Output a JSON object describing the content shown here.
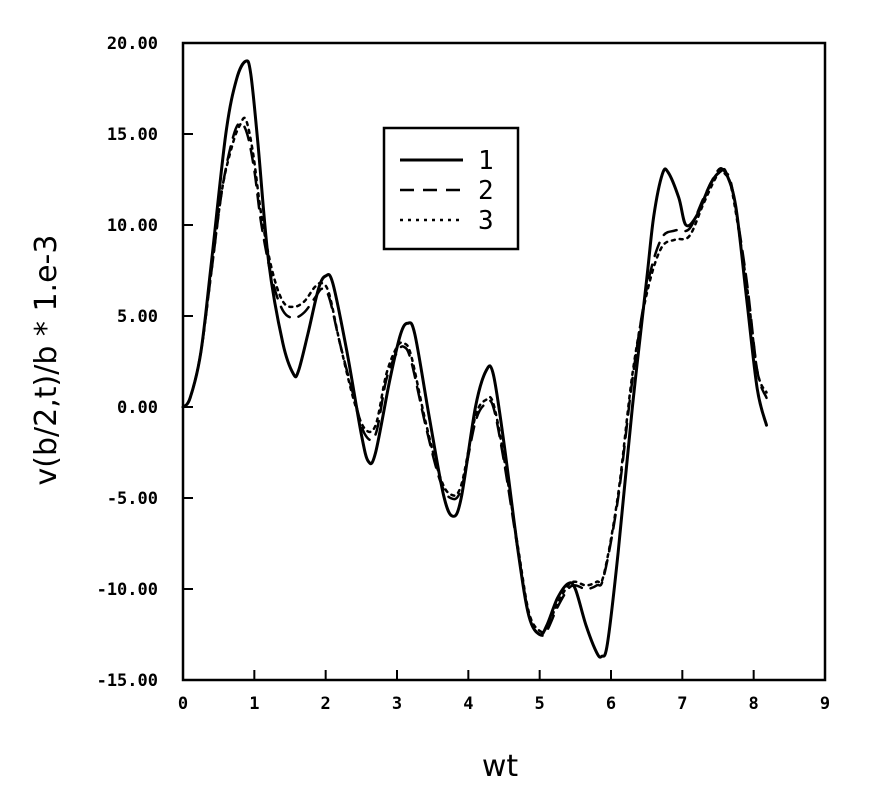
{
  "chart_data": {
    "type": "line",
    "title": "",
    "xlabel": "wt",
    "ylabel": "v(b/2,t)/b * 1.e-3",
    "xlim": [
      0,
      9
    ],
    "ylim": [
      -15,
      20
    ],
    "x_ticks": [
      0,
      1,
      2,
      3,
      4,
      5,
      6,
      7,
      8,
      9
    ],
    "x_tick_labels": [
      "0",
      "1",
      "2",
      "3",
      "4",
      "5",
      "6",
      "7",
      "8",
      "9"
    ],
    "y_ticks": [
      20,
      15,
      10,
      5,
      0,
      -5,
      -10,
      -15
    ],
    "y_tick_labels": [
      "20.00",
      "15.00",
      "10.00",
      "5.00",
      "0.00",
      "-5.00",
      "-10.00",
      "-15.00"
    ],
    "grid": false,
    "legend_position": "upper-center",
    "series": [
      {
        "name": "1",
        "style": "solid",
        "x": [
          0.0,
          0.1,
          0.25,
          0.4,
          0.6,
          0.75,
          0.88,
          0.95,
          1.05,
          1.2,
          1.4,
          1.55,
          1.62,
          1.75,
          1.9,
          2.0,
          2.1,
          2.3,
          2.5,
          2.6,
          2.7,
          2.9,
          3.05,
          3.15,
          3.25,
          3.45,
          3.65,
          3.78,
          3.9,
          4.1,
          4.25,
          4.35,
          4.5,
          4.7,
          4.85,
          5.0,
          5.1,
          5.25,
          5.4,
          5.5,
          5.65,
          5.8,
          5.87,
          5.95,
          6.1,
          6.3,
          6.5,
          6.6,
          6.72,
          6.8,
          6.95,
          7.05,
          7.2,
          7.4,
          7.55,
          7.62,
          7.75,
          7.9,
          8.05,
          8.18
        ],
        "y": [
          0.0,
          0.5,
          3.0,
          8.0,
          15.0,
          18.0,
          19.0,
          18.3,
          14.5,
          8.0,
          3.5,
          1.8,
          2.0,
          4.0,
          6.5,
          7.2,
          6.8,
          3.0,
          -1.5,
          -3.0,
          -2.5,
          1.5,
          4.0,
          4.6,
          4.0,
          -0.5,
          -4.8,
          -6.0,
          -5.0,
          0.0,
          2.0,
          1.8,
          -2.0,
          -8.0,
          -11.5,
          -12.5,
          -12.0,
          -10.5,
          -9.7,
          -10.0,
          -12.0,
          -13.5,
          -13.7,
          -13.0,
          -8.0,
          0.0,
          7.0,
          10.5,
          12.8,
          12.9,
          11.5,
          10.0,
          10.5,
          12.3,
          13.0,
          12.8,
          11.0,
          6.0,
          1.0,
          -1.0
        ]
      },
      {
        "name": "2",
        "style": "dashed",
        "x": [
          0.0,
          0.1,
          0.25,
          0.4,
          0.55,
          0.7,
          0.8,
          0.9,
          1.0,
          1.1,
          1.25,
          1.4,
          1.55,
          1.7,
          1.85,
          1.95,
          2.05,
          2.2,
          2.4,
          2.55,
          2.7,
          2.85,
          3.0,
          3.1,
          3.2,
          3.4,
          3.6,
          3.75,
          3.9,
          4.1,
          4.25,
          4.35,
          4.5,
          4.7,
          4.85,
          5.0,
          5.1,
          5.25,
          5.4,
          5.5,
          5.65,
          5.8,
          5.9,
          6.1,
          6.3,
          6.5,
          6.7,
          6.9,
          7.1,
          7.3,
          7.5,
          7.6,
          7.7,
          7.9,
          8.05,
          8.18
        ],
        "y": [
          0.0,
          0.5,
          3.0,
          7.5,
          12.0,
          14.8,
          15.6,
          15.0,
          13.0,
          10.0,
          7.0,
          5.3,
          4.9,
          5.2,
          6.0,
          6.5,
          6.0,
          3.5,
          0.5,
          -1.5,
          -1.5,
          1.5,
          3.0,
          3.3,
          2.5,
          -1.0,
          -4.0,
          -5.0,
          -4.5,
          -0.8,
          0.2,
          0.0,
          -3.0,
          -8.0,
          -11.5,
          -12.5,
          -12.3,
          -11.0,
          -10.0,
          -9.8,
          -10.0,
          -9.8,
          -9.3,
          -5.0,
          1.5,
          6.5,
          9.2,
          9.7,
          9.8,
          11.5,
          13.0,
          12.9,
          12.0,
          7.0,
          2.0,
          0.5
        ]
      },
      {
        "name": "3",
        "style": "dotted",
        "x": [
          0.0,
          0.1,
          0.25,
          0.4,
          0.55,
          0.7,
          0.8,
          0.88,
          0.98,
          1.1,
          1.25,
          1.4,
          1.55,
          1.7,
          1.85,
          1.95,
          2.05,
          2.2,
          2.4,
          2.55,
          2.7,
          2.85,
          3.0,
          3.1,
          3.2,
          3.4,
          3.6,
          3.75,
          3.9,
          4.1,
          4.25,
          4.35,
          4.5,
          4.7,
          4.85,
          5.0,
          5.1,
          5.25,
          5.4,
          5.5,
          5.65,
          5.8,
          5.9,
          6.1,
          6.3,
          6.5,
          6.7,
          6.9,
          7.1,
          7.3,
          7.5,
          7.6,
          7.7,
          7.9,
          8.05,
          8.18
        ],
        "y": [
          0.0,
          0.5,
          3.0,
          7.5,
          12.0,
          14.5,
          15.5,
          15.8,
          14.0,
          10.5,
          7.5,
          5.8,
          5.5,
          5.8,
          6.6,
          6.8,
          6.2,
          3.5,
          0.3,
          -1.2,
          -1.0,
          1.8,
          3.3,
          3.5,
          2.8,
          -0.8,
          -3.8,
          -4.8,
          -4.3,
          -0.5,
          0.4,
          0.2,
          -2.8,
          -7.8,
          -11.3,
          -12.3,
          -12.1,
          -10.8,
          -9.8,
          -9.6,
          -9.8,
          -9.6,
          -9.2,
          -4.8,
          1.8,
          6.2,
          8.7,
          9.2,
          9.4,
          11.2,
          12.8,
          12.8,
          11.8,
          6.8,
          2.0,
          0.8
        ]
      }
    ]
  }
}
